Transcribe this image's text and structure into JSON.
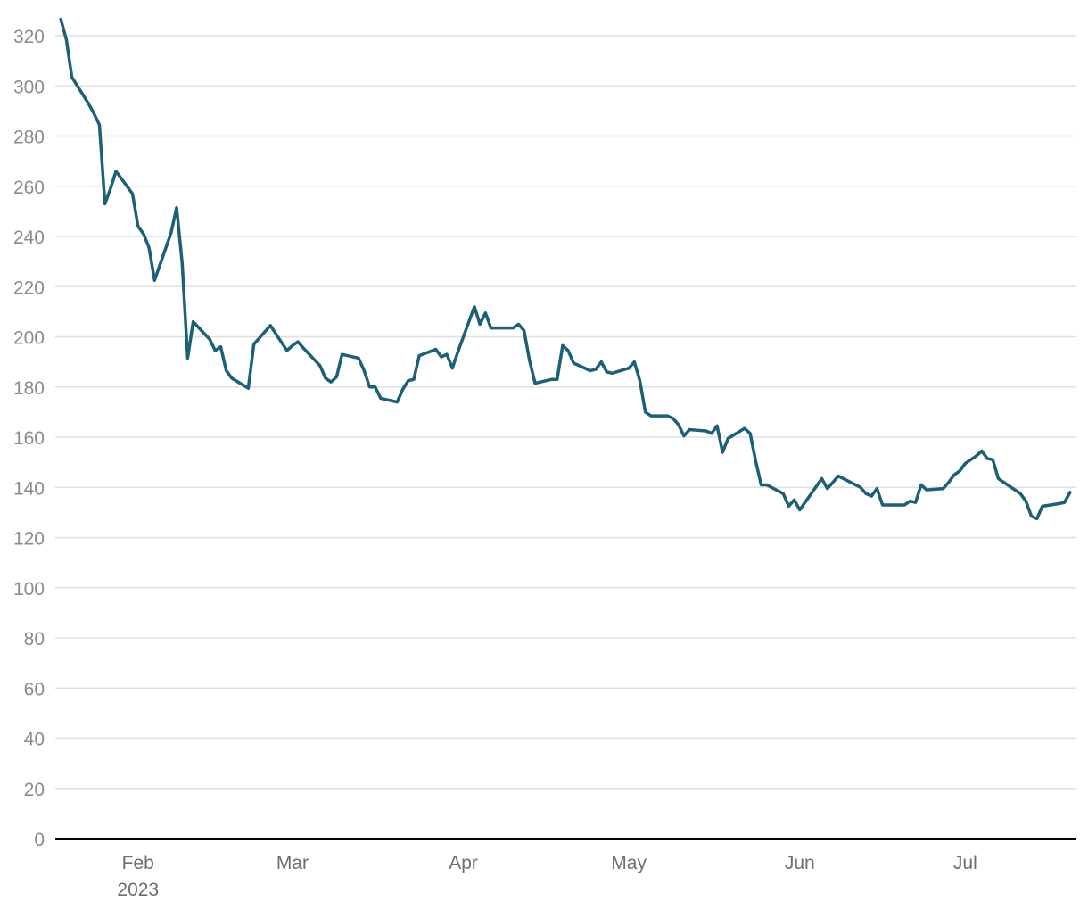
{
  "chart_data": {
    "type": "line",
    "title": "",
    "xlabel": "",
    "ylabel": "",
    "ylim": [
      0,
      320
    ],
    "yticks": [
      0,
      20,
      40,
      60,
      80,
      100,
      120,
      140,
      160,
      180,
      200,
      220,
      240,
      260,
      280,
      300,
      320
    ],
    "xlim": [
      "2023-01-17",
      "2023-07-21"
    ],
    "xticks": [
      {
        "date": "2023-02-01",
        "label": "Feb",
        "sublabel": "2023"
      },
      {
        "date": "2023-03-01",
        "label": "Mar",
        "sublabel": ""
      },
      {
        "date": "2023-04-01",
        "label": "Apr",
        "sublabel": ""
      },
      {
        "date": "2023-05-01",
        "label": "May",
        "sublabel": ""
      },
      {
        "date": "2023-06-01",
        "label": "Jun",
        "sublabel": ""
      },
      {
        "date": "2023-07-01",
        "label": "Jul",
        "sublabel": ""
      }
    ],
    "grid": true,
    "line_color": "#1b6077",
    "series": [
      {
        "points": [
          [
            "2023-01-18",
            326.5
          ],
          [
            "2023-01-19",
            318.5
          ],
          [
            "2023-01-20",
            303.5
          ],
          [
            "2023-01-23",
            293
          ],
          [
            "2023-01-24",
            289
          ],
          [
            "2023-01-25",
            284.5
          ],
          [
            "2023-01-26",
            253
          ],
          [
            "2023-01-27",
            259
          ],
          [
            "2023-01-28",
            266
          ],
          [
            "2023-01-31",
            257
          ],
          [
            "2023-02-01",
            244
          ],
          [
            "2023-02-02",
            241
          ],
          [
            "2023-02-03",
            235.5
          ],
          [
            "2023-02-04",
            222.5
          ],
          [
            "2023-02-07",
            241.5
          ],
          [
            "2023-02-08",
            251.5
          ],
          [
            "2023-02-09",
            229.5
          ],
          [
            "2023-02-10",
            191.5
          ],
          [
            "2023-02-11",
            206
          ],
          [
            "2023-02-14",
            199
          ],
          [
            "2023-02-15",
            194.5
          ],
          [
            "2023-02-16",
            196
          ],
          [
            "2023-02-17",
            186.5
          ],
          [
            "2023-02-18",
            183.5
          ],
          [
            "2023-02-21",
            179.5
          ],
          [
            "2023-02-22",
            197
          ],
          [
            "2023-02-25",
            204.5
          ],
          [
            "2023-02-28",
            194.5
          ],
          [
            "2023-03-01",
            196.5
          ],
          [
            "2023-03-02",
            198
          ],
          [
            "2023-03-03",
            195.5
          ],
          [
            "2023-03-06",
            188.5
          ],
          [
            "2023-03-07",
            183.5
          ],
          [
            "2023-03-08",
            182
          ],
          [
            "2023-03-09",
            184
          ],
          [
            "2023-03-10",
            193
          ],
          [
            "2023-03-13",
            191.5
          ],
          [
            "2023-03-14",
            186.5
          ],
          [
            "2023-03-15",
            180
          ],
          [
            "2023-03-16",
            180
          ],
          [
            "2023-03-17",
            175.5
          ],
          [
            "2023-03-20",
            174
          ],
          [
            "2023-03-21",
            179
          ],
          [
            "2023-03-22",
            182.5
          ],
          [
            "2023-03-23",
            183
          ],
          [
            "2023-03-24",
            192.5
          ],
          [
            "2023-03-27",
            195
          ],
          [
            "2023-03-28",
            192
          ],
          [
            "2023-03-29",
            193
          ],
          [
            "2023-03-30",
            187.5
          ],
          [
            "2023-03-31",
            194
          ],
          [
            "2023-04-03",
            212
          ],
          [
            "2023-04-04",
            205
          ],
          [
            "2023-04-05",
            209.5
          ],
          [
            "2023-04-06",
            203.5
          ],
          [
            "2023-04-10",
            203.5
          ],
          [
            "2023-04-11",
            205
          ],
          [
            "2023-04-12",
            202.5
          ],
          [
            "2023-04-13",
            190.5
          ],
          [
            "2023-04-14",
            181.5
          ],
          [
            "2023-04-17",
            183
          ],
          [
            "2023-04-18",
            183
          ],
          [
            "2023-04-19",
            196.5
          ],
          [
            "2023-04-20",
            194.5
          ],
          [
            "2023-04-21",
            189.5
          ],
          [
            "2023-04-24",
            186.5
          ],
          [
            "2023-04-25",
            187
          ],
          [
            "2023-04-26",
            190
          ],
          [
            "2023-04-27",
            186
          ],
          [
            "2023-04-28",
            185.5
          ],
          [
            "2023-05-01",
            187.5
          ],
          [
            "2023-05-02",
            190
          ],
          [
            "2023-05-03",
            182.5
          ],
          [
            "2023-05-04",
            170
          ],
          [
            "2023-05-05",
            168.5
          ],
          [
            "2023-05-08",
            168.5
          ],
          [
            "2023-05-09",
            167.5
          ],
          [
            "2023-05-10",
            165
          ],
          [
            "2023-05-11",
            160.5
          ],
          [
            "2023-05-12",
            163
          ],
          [
            "2023-05-15",
            162.5
          ],
          [
            "2023-05-16",
            161.5
          ],
          [
            "2023-05-17",
            164.5
          ],
          [
            "2023-05-18",
            154
          ],
          [
            "2023-05-19",
            159.5
          ],
          [
            "2023-05-22",
            163.5
          ],
          [
            "2023-05-23",
            161.5
          ],
          [
            "2023-05-24",
            150.5
          ],
          [
            "2023-05-25",
            141
          ],
          [
            "2023-05-26",
            141
          ],
          [
            "2023-05-29",
            137.5
          ],
          [
            "2023-05-30",
            132.5
          ],
          [
            "2023-05-31",
            135
          ],
          [
            "2023-06-01",
            131
          ],
          [
            "2023-06-05",
            143.5
          ],
          [
            "2023-06-06",
            139.5
          ],
          [
            "2023-06-07",
            142
          ],
          [
            "2023-06-08",
            144.5
          ],
          [
            "2023-06-12",
            140
          ],
          [
            "2023-06-13",
            137.5
          ],
          [
            "2023-06-14",
            136.5
          ],
          [
            "2023-06-15",
            139.5
          ],
          [
            "2023-06-16",
            133
          ],
          [
            "2023-06-20",
            133
          ],
          [
            "2023-06-21",
            134.5
          ],
          [
            "2023-06-22",
            134
          ],
          [
            "2023-06-23",
            141
          ],
          [
            "2023-06-24",
            139
          ],
          [
            "2023-06-27",
            139.5
          ],
          [
            "2023-06-28",
            142
          ],
          [
            "2023-06-29",
            145
          ],
          [
            "2023-06-30",
            146.5
          ],
          [
            "2023-07-01",
            149.5
          ],
          [
            "2023-07-03",
            152.5
          ],
          [
            "2023-07-04",
            154.5
          ],
          [
            "2023-07-05",
            151.5
          ],
          [
            "2023-07-06",
            151
          ],
          [
            "2023-07-07",
            143.5
          ],
          [
            "2023-07-10",
            139
          ],
          [
            "2023-07-11",
            137.5
          ],
          [
            "2023-07-12",
            134.5
          ],
          [
            "2023-07-13",
            128.5
          ],
          [
            "2023-07-14",
            127.5
          ],
          [
            "2023-07-15",
            132.5
          ],
          [
            "2023-07-18",
            133.5
          ],
          [
            "2023-07-19",
            134
          ],
          [
            "2023-07-20",
            138
          ]
        ]
      }
    ]
  }
}
